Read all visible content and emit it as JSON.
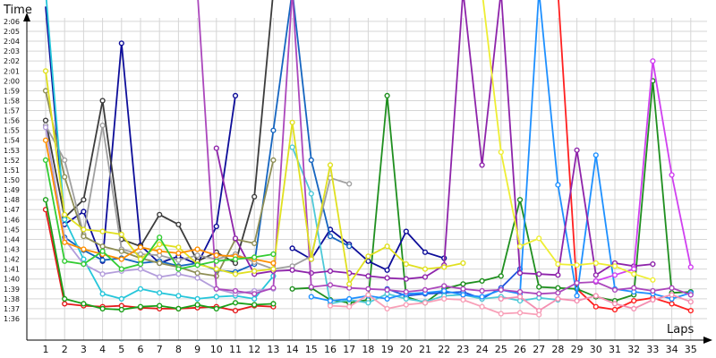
{
  "chart_data": {
    "type": "line",
    "title": "",
    "xlabel": "Laps",
    "ylabel": "Time",
    "grid": true,
    "x": [
      1,
      2,
      3,
      4,
      5,
      6,
      7,
      8,
      9,
      10,
      11,
      12,
      13,
      14,
      15,
      16,
      17,
      18,
      19,
      20,
      21,
      22,
      23,
      24,
      25,
      26,
      27,
      28,
      29,
      30,
      31,
      32,
      33,
      34,
      35
    ],
    "xlim": [
      1,
      35
    ],
    "ylim_seconds": [
      95,
      128
    ],
    "y_tick_labels": [
      "1:36",
      "1:37",
      "1:38",
      "1:39",
      "1:40",
      "1:41",
      "1:42",
      "1:43",
      "1:44",
      "1:45",
      "1:46",
      "1:47",
      "1:48",
      "1:49",
      "1:50",
      "1:51",
      "1:52",
      "1:53",
      "1:54",
      "1:55",
      "1:56",
      "1:57",
      "1:58",
      "1:59",
      "2:00",
      "2:01",
      "2:02",
      "2:03",
      "2:04",
      "2:05",
      "2:06"
    ],
    "y_ticks_seconds": [
      96,
      97,
      98,
      99,
      100,
      101,
      102,
      103,
      104,
      105,
      106,
      107,
      108,
      109,
      110,
      111,
      112,
      113,
      114,
      115,
      116,
      117,
      118,
      119,
      120,
      121,
      122,
      123,
      124,
      125,
      126
    ],
    "series": [
      {
        "color": "#e41a1c",
        "values": [
          107,
          97.5,
          97.3,
          97.2,
          97.3,
          97.1,
          97.0,
          97.0,
          97.1,
          97.2,
          96.8,
          97.3,
          97.2,
          null,
          null,
          null,
          null,
          null,
          null,
          null,
          null,
          null,
          null,
          null,
          null,
          null,
          null,
          null,
          null,
          null,
          null,
          null,
          null,
          null,
          null
        ]
      },
      {
        "color": "#ff2020",
        "values": [
          null,
          null,
          null,
          null,
          null,
          null,
          null,
          null,
          null,
          null,
          null,
          null,
          null,
          null,
          null,
          null,
          null,
          null,
          null,
          null,
          null,
          null,
          null,
          null,
          null,
          null,
          null,
          160,
          99,
          97.2,
          96.9,
          97.8,
          98.1,
          97.5,
          96.8
        ]
      },
      {
        "color": "#19a019",
        "values": [
          108,
          98.0,
          97.5,
          97.0,
          96.9,
          97.2,
          97.3,
          97.0,
          97.4,
          97.0,
          97.6,
          97.4,
          97.5,
          null,
          null,
          null,
          null,
          null,
          null,
          null,
          null,
          null,
          null,
          null,
          null,
          null,
          null,
          null,
          null,
          null,
          null,
          null,
          null,
          null,
          null
        ]
      },
      {
        "color": "#1f8f1f",
        "values": [
          null,
          null,
          null,
          null,
          null,
          null,
          null,
          null,
          null,
          null,
          null,
          null,
          null,
          99.0,
          99.1,
          97.9,
          97.6,
          97.9,
          118.5,
          98.2,
          97.6,
          99.0,
          99.5,
          99.8,
          100.3,
          108.0,
          99.2,
          99.1,
          99.0,
          98.2,
          97.8,
          98.4,
          120.0,
          98.6,
          98.7
        ]
      },
      {
        "color": "#0d0d99",
        "values": [
          127.5,
          105.5,
          106.8,
          101.8,
          123.8,
          103.4,
          101.6,
          102.3,
          101.5,
          105.3,
          118.5,
          null,
          null,
          103.1,
          102.0,
          105.0,
          103.5,
          101.8,
          100.9,
          104.8,
          102.7,
          102.1,
          null,
          null,
          null,
          null,
          null,
          null,
          null,
          null,
          null,
          null,
          null,
          null,
          null
        ]
      },
      {
        "color": "#1565c0",
        "values": [
          null,
          104.2,
          102.9,
          101.9,
          102.1,
          101.6,
          101.8,
          101.3,
          101.6,
          100.9,
          100.7,
          101.5,
          115.0,
          150,
          112.0,
          104.3,
          103.3,
          null,
          null,
          null,
          null,
          null,
          null,
          null,
          null,
          null,
          null,
          null,
          null,
          null,
          null,
          null,
          null,
          null,
          null
        ]
      },
      {
        "color": "#2255dd",
        "values": [
          null,
          null,
          null,
          null,
          null,
          null,
          null,
          null,
          null,
          null,
          null,
          null,
          null,
          null,
          null,
          null,
          null,
          null,
          99.0,
          98.3,
          98.5,
          98.6,
          98.7,
          98.0,
          99.1,
          101.0,
          null,
          null,
          null,
          null,
          null,
          null,
          null,
          null,
          null
        ]
      },
      {
        "color": "#3c3c3c",
        "values": [
          116.0,
          106.2,
          108.0,
          118.0,
          104.0,
          103.3,
          106.5,
          105.5,
          101.8,
          102.7,
          101.6,
          108.3,
          150,
          null,
          null,
          null,
          null,
          null,
          null,
          null,
          null,
          null,
          null,
          null,
          null,
          null,
          null,
          null,
          null,
          null,
          null,
          null,
          null,
          null,
          null
        ]
      },
      {
        "color": "#a0a0a0",
        "values": [
          115.5,
          112.0,
          104.5,
          115.5,
          103.0,
          102.5,
          102.4,
          101.9,
          102.4,
          102.0,
          102.5,
          101.7,
          101.0,
          101.3,
          102.3,
          110.2,
          109.6,
          null,
          null,
          null,
          null,
          null,
          null,
          null,
          null,
          null,
          null,
          null,
          null,
          null,
          null,
          null,
          null,
          null,
          null
        ]
      },
      {
        "color": "#8e8e55",
        "values": [
          119.0,
          110.3,
          104.3,
          103.3,
          102.8,
          102.1,
          101.6,
          101.2,
          100.6,
          100.3,
          104.0,
          103.6,
          112.0,
          null,
          null,
          null,
          null,
          null,
          null,
          null,
          null,
          null,
          null,
          null,
          null,
          null,
          null,
          null,
          null,
          null,
          null,
          null,
          null,
          null,
          null
        ]
      },
      {
        "color": "#26c6da",
        "values": [
          150,
          106.0,
          102.0,
          98.5,
          98.0,
          99.0,
          98.6,
          98.3,
          98.0,
          98.2,
          98.3,
          98.0,
          100.3,
          null,
          null,
          null,
          null,
          null,
          null,
          null,
          null,
          null,
          null,
          null,
          null,
          null,
          null,
          null,
          null,
          null,
          null,
          null,
          null,
          null,
          null
        ]
      },
      {
        "color": "#4ec9d8",
        "values": [
          null,
          null,
          null,
          null,
          null,
          null,
          null,
          null,
          null,
          null,
          null,
          null,
          null,
          113.3,
          108.6,
          97.5,
          97.9,
          97.6,
          98.5,
          98.0,
          97.7,
          98.3,
          98.4,
          98.0,
          98.2,
          97.8,
          98.1,
          97.9,
          null,
          null,
          null,
          null,
          null,
          null,
          null
        ]
      },
      {
        "color": "#1e90ff",
        "values": [
          null,
          null,
          null,
          null,
          null,
          null,
          null,
          null,
          null,
          null,
          null,
          null,
          null,
          null,
          98.2,
          97.8,
          98.0,
          98.3,
          98.0,
          98.5,
          98.6,
          98.8,
          98.4,
          98.2,
          98.9,
          98.5,
          150,
          109.5,
          98.3,
          112.5,
          99.0,
          98.7,
          98.5,
          98.0,
          98.6
        ]
      },
      {
        "color": "#b39ddb",
        "values": [
          115.3,
          104.0,
          101.5,
          100.5,
          100.8,
          101.0,
          100.2,
          100.5,
          100.1,
          99.0,
          98.5,
          98.8,
          99.0,
          null,
          null,
          null,
          null,
          null,
          null,
          null,
          null,
          null,
          null,
          null,
          null,
          null,
          null,
          null,
          null,
          null,
          null,
          null,
          null,
          null,
          null
        ]
      },
      {
        "color": "#8e24aa",
        "values": [
          null,
          null,
          null,
          null,
          null,
          null,
          null,
          null,
          null,
          113.2,
          104.1,
          100.5,
          100.8,
          100.9,
          100.6,
          100.8,
          100.6,
          100.3,
          100.1,
          100.0,
          100.2,
          101.4,
          150,
          111.5,
          150,
          100.6,
          100.5,
          100.4,
          113.0,
          100.4,
          101.6,
          101.3,
          101.5,
          null,
          null
        ]
      },
      {
        "color": "#ab47bc",
        "values": [
          null,
          null,
          null,
          null,
          null,
          null,
          null,
          null,
          150,
          99.0,
          98.8,
          98.5,
          99.1,
          150,
          99.2,
          99.4,
          99.1,
          99.0,
          98.9,
          98.7,
          98.9,
          99.3,
          99.0,
          98.8,
          98.9,
          98.7,
          98.5,
          98.6,
          99.6,
          99.7,
          98.9,
          99.1,
          98.8,
          99.1,
          98.4
        ]
      },
      {
        "color": "#d040f0",
        "values": [
          null,
          null,
          null,
          null,
          null,
          null,
          null,
          null,
          null,
          null,
          null,
          null,
          null,
          null,
          null,
          null,
          null,
          null,
          null,
          null,
          null,
          null,
          null,
          null,
          null,
          null,
          null,
          null,
          null,
          99.8,
          100.4,
          101.0,
          122.0,
          110.5,
          101.2
        ]
      },
      {
        "color": "#e0e020",
        "values": [
          121.0,
          106.5,
          105.0,
          104.8,
          104.5,
          102.0,
          103.5,
          103.2,
          101.5,
          101.0,
          100.5,
          100.8,
          101.0,
          115.8,
          102.0,
          111.5,
          99.5,
          102.3,
          103.3,
          101.5,
          101.0,
          101.2,
          101.6,
          null,
          null,
          null,
          null,
          null,
          null,
          null,
          null,
          null,
          null,
          null,
          null
        ]
      },
      {
        "color": "#eeee33",
        "values": [
          null,
          null,
          null,
          null,
          null,
          null,
          null,
          null,
          null,
          null,
          null,
          null,
          null,
          null,
          null,
          null,
          null,
          null,
          null,
          null,
          null,
          null,
          null,
          150,
          112.8,
          103.3,
          104.1,
          101.5,
          101.4,
          101.6,
          101.3,
          100.5,
          99.9,
          null,
          null
        ]
      },
      {
        "color": "#ff8f00",
        "values": [
          114.0,
          103.7,
          103.0,
          102.5,
          102.0,
          103.2,
          102.8,
          102.6,
          103.0,
          102.4,
          102.3,
          102.0,
          101.6,
          null,
          null,
          null,
          null,
          null,
          null,
          null,
          null,
          null,
          null,
          null,
          null,
          null,
          null,
          null,
          null,
          null,
          null,
          null,
          null,
          null,
          null
        ]
      },
      {
        "color": "#f48fb1",
        "values": [
          null,
          null,
          null,
          null,
          null,
          null,
          null,
          null,
          null,
          null,
          null,
          null,
          null,
          null,
          null,
          null,
          null,
          null,
          null,
          null,
          null,
          null,
          null,
          null,
          98.0,
          98.2,
          96.8,
          98.0,
          97.8,
          98.3,
          97.5,
          97.0,
          97.9,
          98.4,
          97.7
        ]
      },
      {
        "color": "#f8a0b8",
        "values": [
          null,
          null,
          null,
          null,
          null,
          null,
          null,
          null,
          null,
          null,
          null,
          null,
          null,
          null,
          null,
          97.3,
          97.2,
          98.4,
          97.0,
          97.4,
          97.6,
          98.0,
          97.9,
          97.2,
          96.5,
          96.6,
          96.4,
          null,
          null,
          null,
          null,
          null,
          null,
          null,
          null
        ]
      },
      {
        "color": "#33cc33",
        "values": [
          112.0,
          101.8,
          101.5,
          102.8,
          101.0,
          101.5,
          104.2,
          101.0,
          101.4,
          101.8,
          102.0,
          102.2,
          102.5,
          null,
          null,
          null,
          null,
          null,
          null,
          null,
          null,
          null,
          null,
          null,
          null,
          null,
          null,
          null,
          null,
          null,
          null,
          null,
          null,
          null,
          null
        ]
      }
    ]
  }
}
